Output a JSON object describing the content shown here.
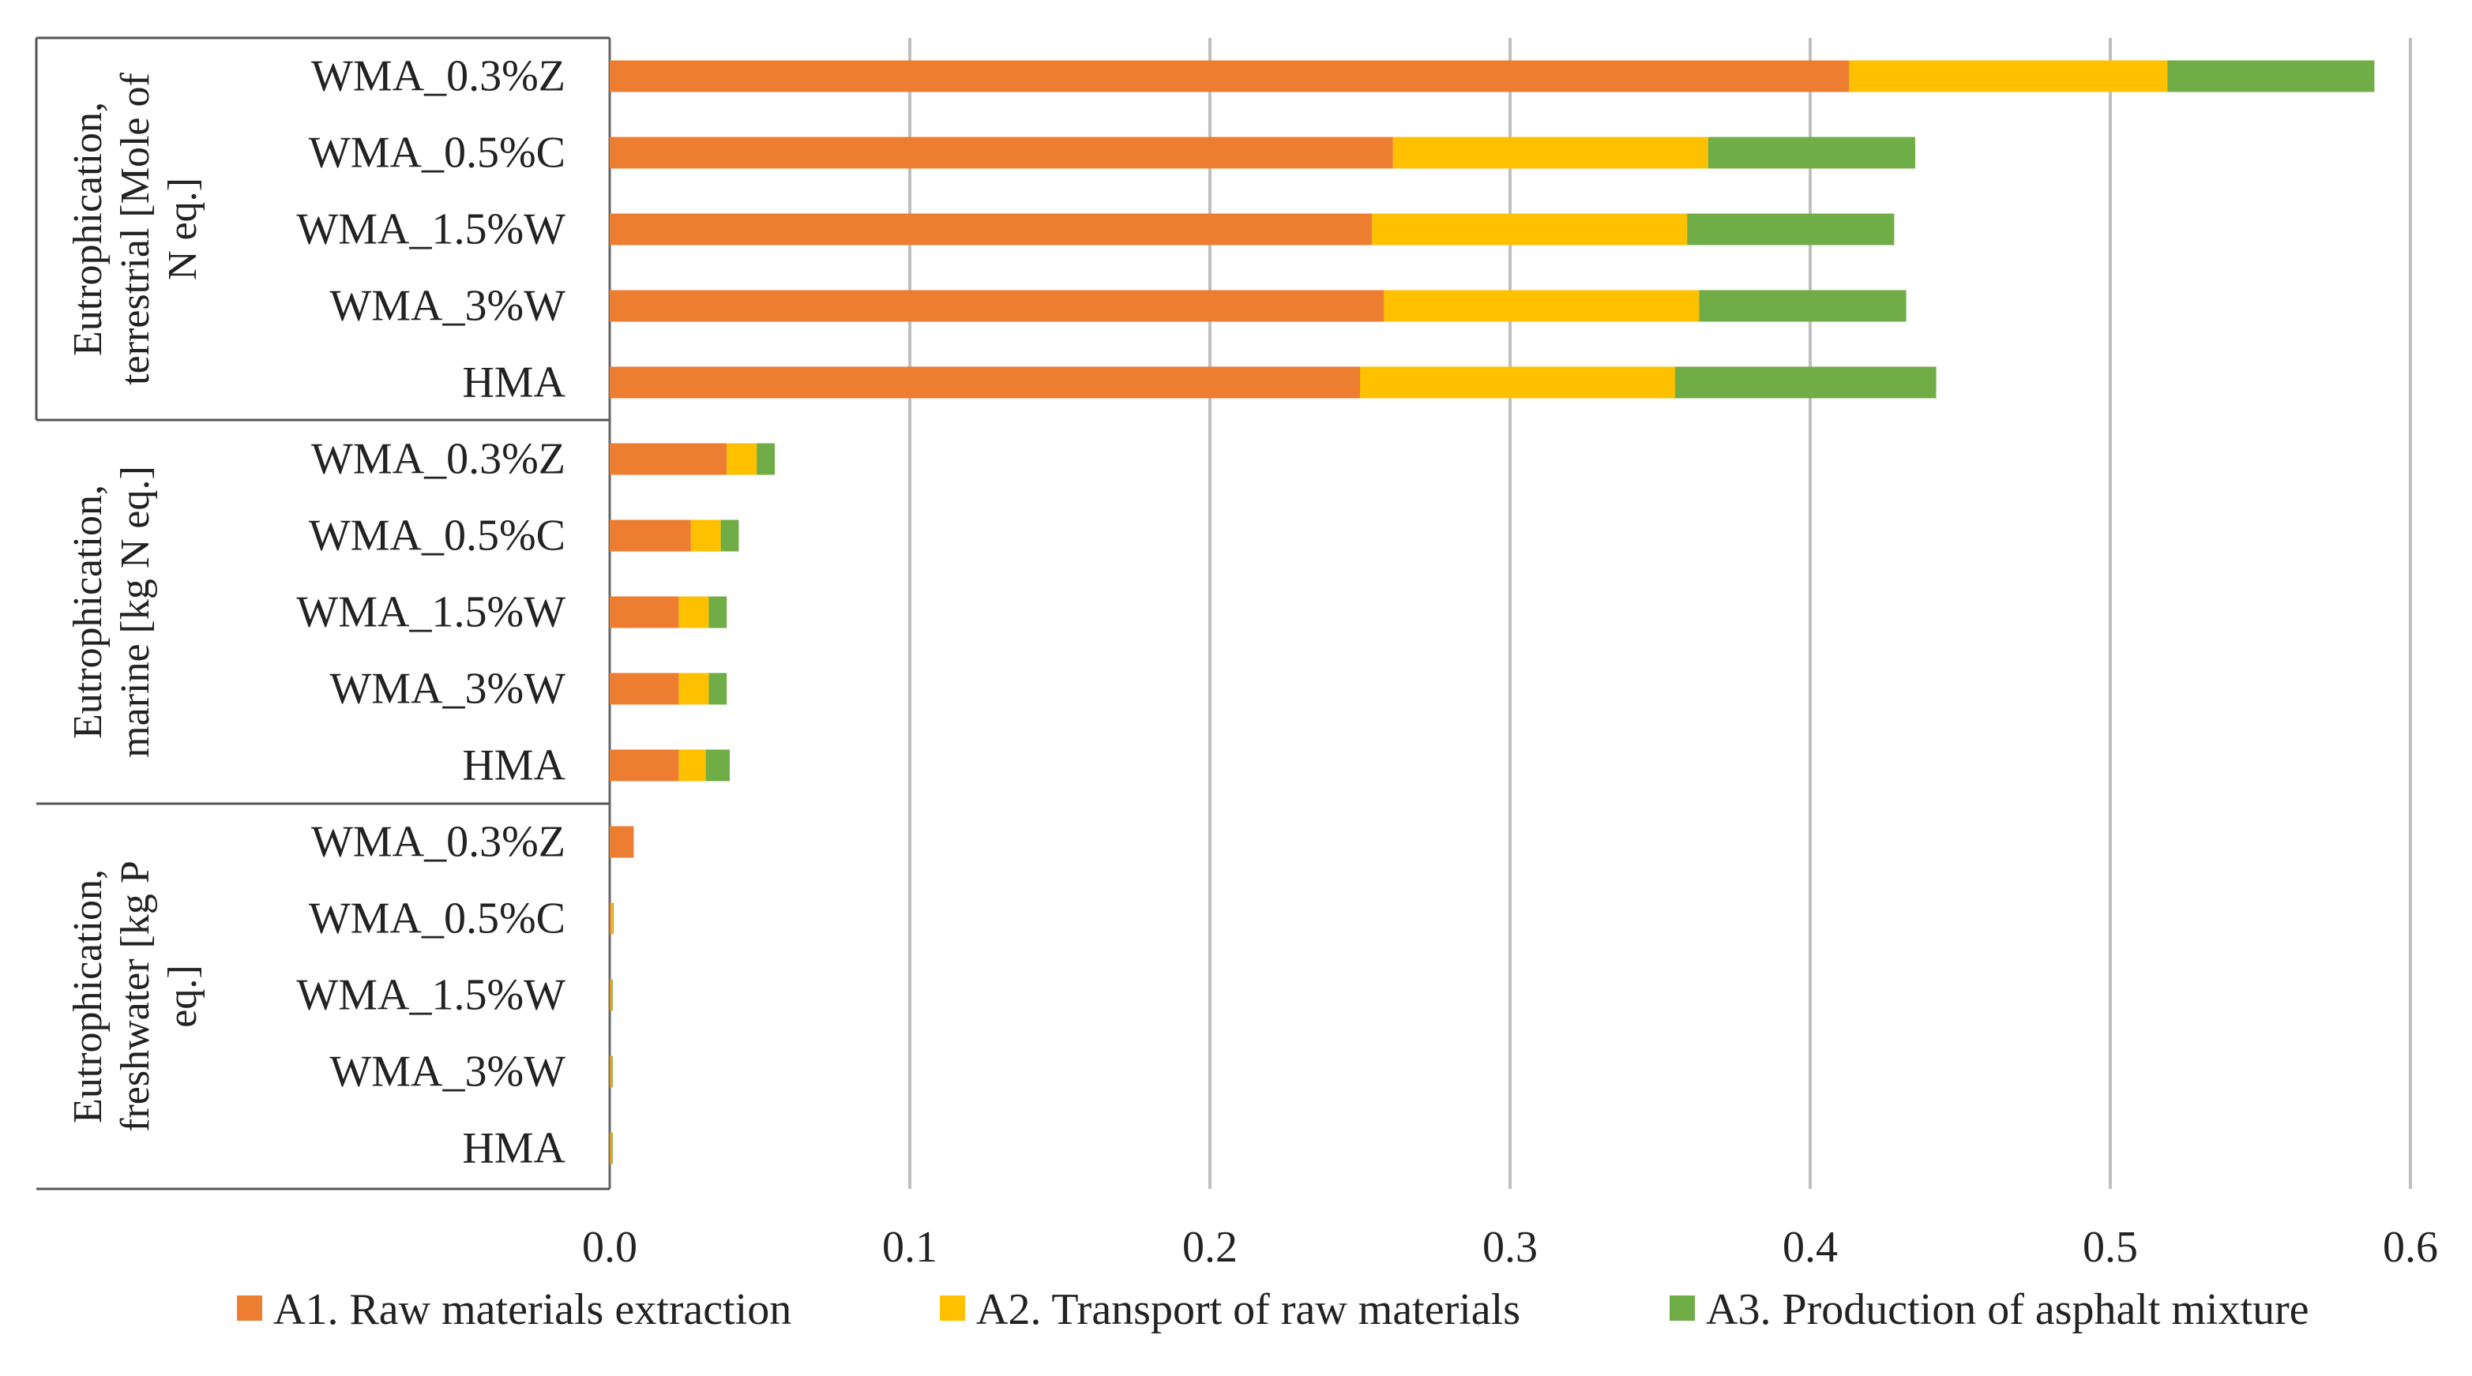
{
  "chart_data": {
    "type": "bar",
    "orientation": "horizontal",
    "stacked": true,
    "title": "",
    "xlabel": "",
    "ylabel": "",
    "xlim": [
      0,
      0.6
    ],
    "xticks": [
      0,
      0.1,
      0.2,
      0.3,
      0.4,
      0.5,
      0.6
    ],
    "xtick_labels": [
      "0.0",
      "0.1",
      "0.2",
      "0.3",
      "0.4",
      "0.5",
      "0.6"
    ],
    "grid": "vertical",
    "legend_position": "bottom",
    "groups": [
      {
        "label": "Eutrophication, terrestrial [Mole of N eq.]",
        "label_lines": [
          "Eutrophication,",
          "terrestrial [Mole of",
          "N eq.]"
        ],
        "categories": [
          "WMA_0.3%Z",
          "WMA_0.5%C",
          "WMA_1.5%W",
          "WMA_3%W",
          "HMA"
        ]
      },
      {
        "label": "Eutrophication, marine [kg N eq.]",
        "label_lines": [
          "Eutrophication,",
          "marine [kg N eq.]"
        ],
        "categories": [
          "WMA_0.3%Z",
          "WMA_0.5%C",
          "WMA_1.5%W",
          "WMA_3%W",
          "HMA"
        ]
      },
      {
        "label": "Eutrophication, freshwater [kg P eq.]",
        "label_lines": [
          "Eutrophication,",
          "freshwater [kg P",
          "eq.]"
        ],
        "categories": [
          "WMA_0.3%Z",
          "WMA_0.5%C",
          "WMA_1.5%W",
          "WMA_3%W",
          "HMA"
        ]
      }
    ],
    "series": [
      {
        "name": "A1. Raw materials extraction",
        "color": "#ED7D31",
        "values": [
          0.413,
          0.261,
          0.254,
          0.258,
          0.25,
          0.039,
          0.027,
          0.023,
          0.023,
          0.023,
          0.008,
          0.0005,
          0.0003,
          0.0003,
          0.0003
        ]
      },
      {
        "name": "A2. Transport of raw materials",
        "color": "#FFC000",
        "values": [
          0.106,
          0.105,
          0.105,
          0.105,
          0.105,
          0.01,
          0.01,
          0.01,
          0.01,
          0.009,
          0.0,
          0.0005,
          0.0003,
          0.0003,
          0.0003
        ]
      },
      {
        "name": "A3. Production of asphalt mixture",
        "color": "#70AD47",
        "values": [
          0.069,
          0.069,
          0.069,
          0.069,
          0.087,
          0.006,
          0.006,
          0.006,
          0.006,
          0.008,
          0.0,
          0.0003,
          0.0004,
          0.0004,
          0.0004
        ]
      }
    ]
  }
}
